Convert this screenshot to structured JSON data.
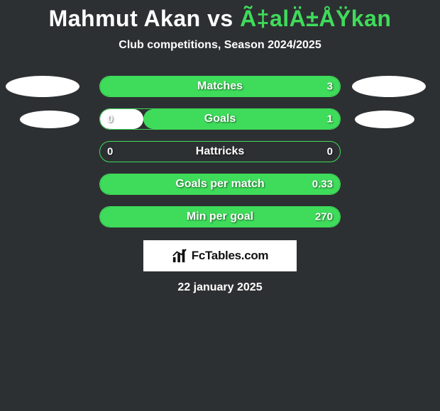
{
  "title": {
    "player1": "Mahmut Akan",
    "vs": "vs",
    "player2": "Ã‡alÄ±ÅŸkan",
    "player1_color": "#ffffff",
    "player2_color": "#3edc5a"
  },
  "subtitle": "Club competitions, Season 2024/2025",
  "bar": {
    "track_width": 340,
    "track_height": 30,
    "border_color": "#3edc5a",
    "left_color": "#ffffff",
    "right_color": "#3edc5a",
    "background": "#2d3032"
  },
  "ellipse_color": "#ffffff",
  "stats": [
    {
      "label": "Matches",
      "left_val": "",
      "right_val": "3",
      "left_pct": 0,
      "right_pct": 100,
      "show_left_ellipse": true,
      "show_right_ellipse": true
    },
    {
      "label": "Goals",
      "left_val": "0",
      "right_val": "1",
      "left_pct": 18,
      "right_pct": 82,
      "show_left_ellipse": true,
      "show_right_ellipse": true
    },
    {
      "label": "Hattricks",
      "left_val": "0",
      "right_val": "0",
      "left_pct": 0,
      "right_pct": 0,
      "show_left_ellipse": false,
      "show_right_ellipse": false
    },
    {
      "label": "Goals per match",
      "left_val": "",
      "right_val": "0.33",
      "left_pct": 0,
      "right_pct": 100,
      "show_left_ellipse": false,
      "show_right_ellipse": false
    },
    {
      "label": "Min per goal",
      "left_val": "",
      "right_val": "270",
      "left_pct": 0,
      "right_pct": 100,
      "show_left_ellipse": false,
      "show_right_ellipse": false
    }
  ],
  "brand": {
    "text": "FcTables.com"
  },
  "date": "22 january 2025"
}
